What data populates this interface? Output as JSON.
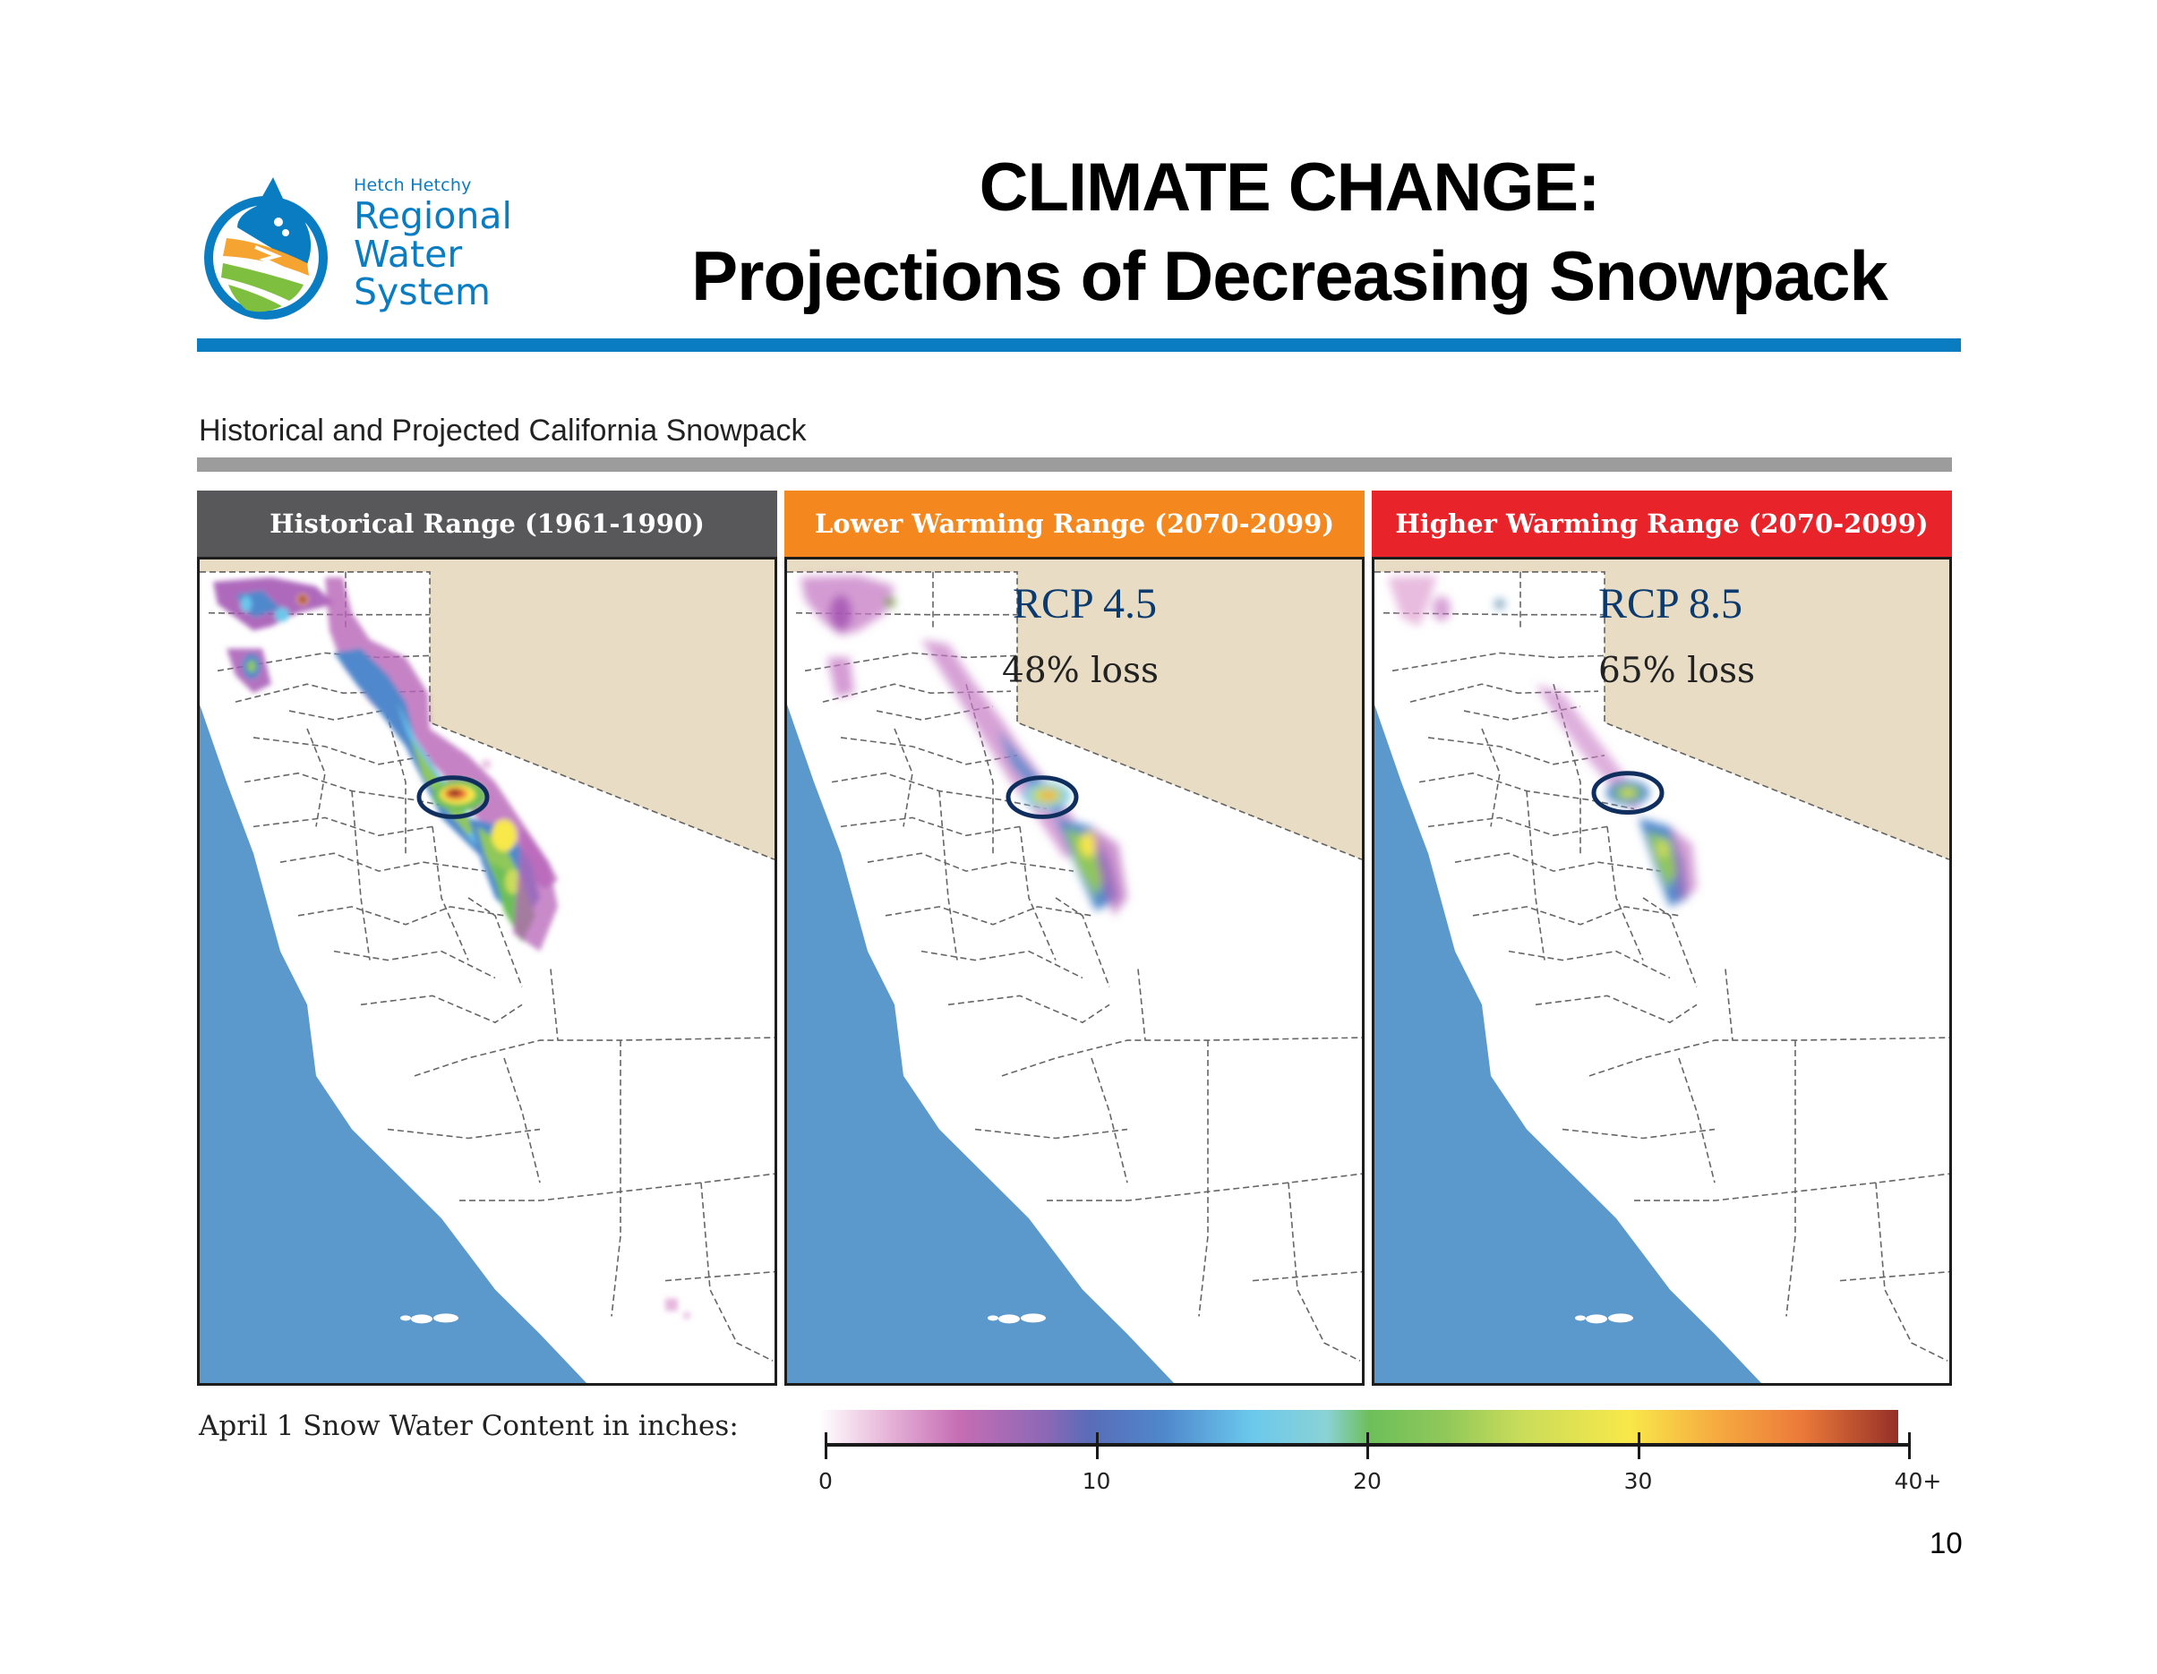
{
  "logo": {
    "org_small": "Hetch Hetchy",
    "line1": "Regional",
    "line2": "Water",
    "line3": "System",
    "colors": {
      "blue": "#0a7dc2",
      "orange": "#f6a431",
      "green": "#7fbf3f"
    }
  },
  "title": {
    "line1": "CLIMATE CHANGE:",
    "line2": "Projections of Decreasing Snowpack"
  },
  "section": {
    "title": "Historical and Projected California Snowpack"
  },
  "panels": [
    {
      "header": "Historical Range (1961-1990)",
      "header_color": "#58585a",
      "scenario": "",
      "loss": "",
      "highlight": "Hetch Hetchy watershed (circled)"
    },
    {
      "header": "Lower Warming Range (2070-2099)",
      "header_color": "#f5871f",
      "scenario": "RCP 4.5",
      "loss": "48% loss",
      "highlight": "Hetch Hetchy watershed (circled)"
    },
    {
      "header": "Higher Warming Range (2070-2099)",
      "header_color": "#e8232a",
      "scenario": "RCP 8.5",
      "loss": "65% loss",
      "highlight": "Hetch Hetchy watershed (circled)"
    }
  ],
  "legend": {
    "label": "April 1 Snow Water Content in inches:",
    "ticks": [
      "0",
      "10",
      "20",
      "30",
      "40+"
    ],
    "range": [
      0,
      40
    ]
  },
  "page_number": "10"
}
